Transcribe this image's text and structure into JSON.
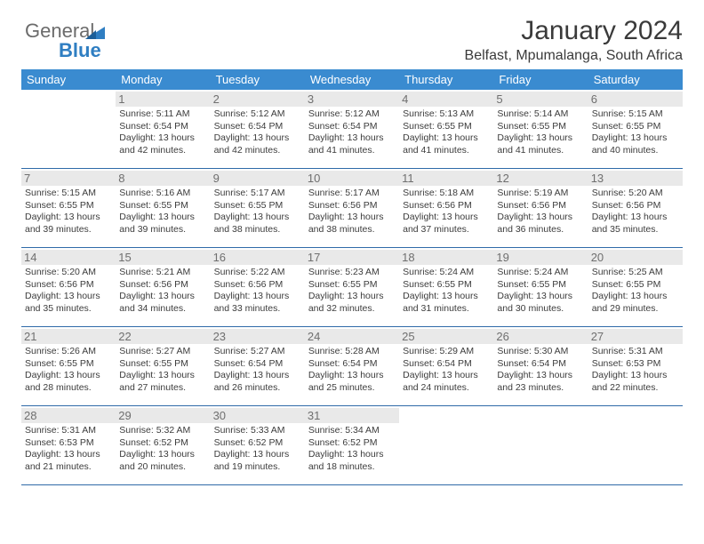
{
  "brand": {
    "name1": "General",
    "name2": "Blue"
  },
  "title": "January 2024",
  "location": "Belfast, Mpumalanga, South Africa",
  "dow": [
    "Sunday",
    "Monday",
    "Tuesday",
    "Wednesday",
    "Thursday",
    "Friday",
    "Saturday"
  ],
  "colors": {
    "header_bg": "#3a8bd0",
    "header_fg": "#ffffff",
    "rule": "#2f6aa8",
    "daynum_bg": "#e9e9e9",
    "daynum_fg": "#6f6f6f",
    "text": "#3c3c3c",
    "logo_gray": "#6b6b6b",
    "logo_blue": "#2f7ec2"
  },
  "font": {
    "title_pt": 30,
    "location_pt": 16,
    "dow_pt": 13,
    "daynum_pt": 13,
    "body_pt": 10.5
  },
  "weeks": [
    [
      {
        "n": "",
        "sr": "",
        "ss": "",
        "dl": ""
      },
      {
        "n": "1",
        "sr": "5:11 AM",
        "ss": "6:54 PM",
        "dl": "13 hours and 42 minutes."
      },
      {
        "n": "2",
        "sr": "5:12 AM",
        "ss": "6:54 PM",
        "dl": "13 hours and 42 minutes."
      },
      {
        "n": "3",
        "sr": "5:12 AM",
        "ss": "6:54 PM",
        "dl": "13 hours and 41 minutes."
      },
      {
        "n": "4",
        "sr": "5:13 AM",
        "ss": "6:55 PM",
        "dl": "13 hours and 41 minutes."
      },
      {
        "n": "5",
        "sr": "5:14 AM",
        "ss": "6:55 PM",
        "dl": "13 hours and 41 minutes."
      },
      {
        "n": "6",
        "sr": "5:15 AM",
        "ss": "6:55 PM",
        "dl": "13 hours and 40 minutes."
      }
    ],
    [
      {
        "n": "7",
        "sr": "5:15 AM",
        "ss": "6:55 PM",
        "dl": "13 hours and 39 minutes."
      },
      {
        "n": "8",
        "sr": "5:16 AM",
        "ss": "6:55 PM",
        "dl": "13 hours and 39 minutes."
      },
      {
        "n": "9",
        "sr": "5:17 AM",
        "ss": "6:55 PM",
        "dl": "13 hours and 38 minutes."
      },
      {
        "n": "10",
        "sr": "5:17 AM",
        "ss": "6:56 PM",
        "dl": "13 hours and 38 minutes."
      },
      {
        "n": "11",
        "sr": "5:18 AM",
        "ss": "6:56 PM",
        "dl": "13 hours and 37 minutes."
      },
      {
        "n": "12",
        "sr": "5:19 AM",
        "ss": "6:56 PM",
        "dl": "13 hours and 36 minutes."
      },
      {
        "n": "13",
        "sr": "5:20 AM",
        "ss": "6:56 PM",
        "dl": "13 hours and 35 minutes."
      }
    ],
    [
      {
        "n": "14",
        "sr": "5:20 AM",
        "ss": "6:56 PM",
        "dl": "13 hours and 35 minutes."
      },
      {
        "n": "15",
        "sr": "5:21 AM",
        "ss": "6:56 PM",
        "dl": "13 hours and 34 minutes."
      },
      {
        "n": "16",
        "sr": "5:22 AM",
        "ss": "6:56 PM",
        "dl": "13 hours and 33 minutes."
      },
      {
        "n": "17",
        "sr": "5:23 AM",
        "ss": "6:55 PM",
        "dl": "13 hours and 32 minutes."
      },
      {
        "n": "18",
        "sr": "5:24 AM",
        "ss": "6:55 PM",
        "dl": "13 hours and 31 minutes."
      },
      {
        "n": "19",
        "sr": "5:24 AM",
        "ss": "6:55 PM",
        "dl": "13 hours and 30 minutes."
      },
      {
        "n": "20",
        "sr": "5:25 AM",
        "ss": "6:55 PM",
        "dl": "13 hours and 29 minutes."
      }
    ],
    [
      {
        "n": "21",
        "sr": "5:26 AM",
        "ss": "6:55 PM",
        "dl": "13 hours and 28 minutes."
      },
      {
        "n": "22",
        "sr": "5:27 AM",
        "ss": "6:55 PM",
        "dl": "13 hours and 27 minutes."
      },
      {
        "n": "23",
        "sr": "5:27 AM",
        "ss": "6:54 PM",
        "dl": "13 hours and 26 minutes."
      },
      {
        "n": "24",
        "sr": "5:28 AM",
        "ss": "6:54 PM",
        "dl": "13 hours and 25 minutes."
      },
      {
        "n": "25",
        "sr": "5:29 AM",
        "ss": "6:54 PM",
        "dl": "13 hours and 24 minutes."
      },
      {
        "n": "26",
        "sr": "5:30 AM",
        "ss": "6:54 PM",
        "dl": "13 hours and 23 minutes."
      },
      {
        "n": "27",
        "sr": "5:31 AM",
        "ss": "6:53 PM",
        "dl": "13 hours and 22 minutes."
      }
    ],
    [
      {
        "n": "28",
        "sr": "5:31 AM",
        "ss": "6:53 PM",
        "dl": "13 hours and 21 minutes."
      },
      {
        "n": "29",
        "sr": "5:32 AM",
        "ss": "6:52 PM",
        "dl": "13 hours and 20 minutes."
      },
      {
        "n": "30",
        "sr": "5:33 AM",
        "ss": "6:52 PM",
        "dl": "13 hours and 19 minutes."
      },
      {
        "n": "31",
        "sr": "5:34 AM",
        "ss": "6:52 PM",
        "dl": "13 hours and 18 minutes."
      },
      {
        "n": "",
        "sr": "",
        "ss": "",
        "dl": ""
      },
      {
        "n": "",
        "sr": "",
        "ss": "",
        "dl": ""
      },
      {
        "n": "",
        "sr": "",
        "ss": "",
        "dl": ""
      }
    ]
  ],
  "labels": {
    "sunrise": "Sunrise: ",
    "sunset": "Sunset: ",
    "daylight": "Daylight: "
  }
}
